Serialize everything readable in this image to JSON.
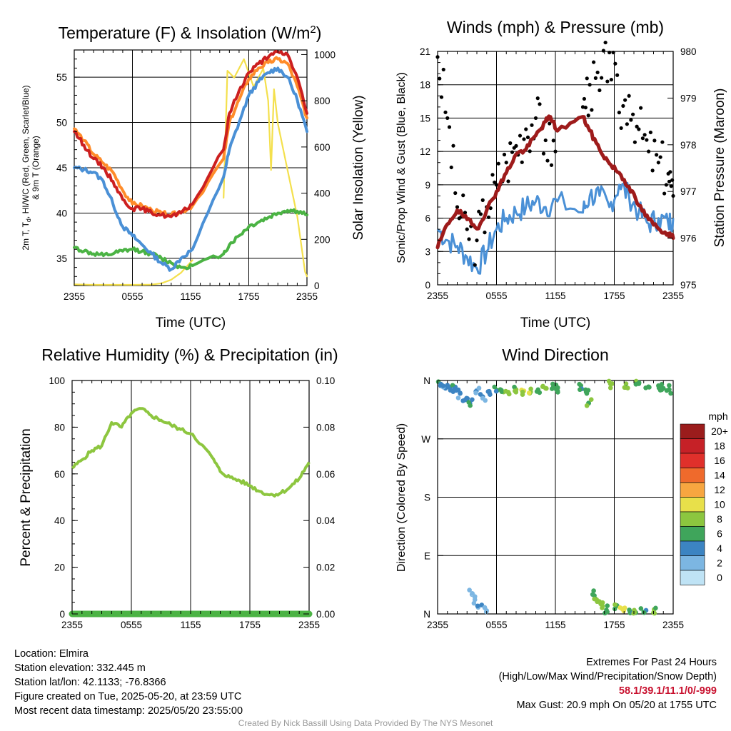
{
  "colors": {
    "temp": "#cc1f1f",
    "heat_index": "#ed7b2e",
    "dewpoint": "#4bb344",
    "temp9m": "#ff8c2a",
    "wind": "#4a90d6",
    "gust": "#000000",
    "pressure": "#9e1b1b",
    "insolation": "#f4e04d",
    "rh": "#8dc63f",
    "precip": "#4bb344",
    "extremes": "#c8102e",
    "credit": "#999999"
  },
  "panels": {
    "temp": {
      "title_main": "Temperature (F) & Insolation (W/m",
      "title_sup": "2",
      "title_end": ")",
      "ylabel_line1": "2m T, T",
      "ylabel_sub": "d",
      "ylabel_line1_end": ", HI/WC (Red, Green, Scarlet/Blue)",
      "ylabel_line2": "& 9m T (Orange)",
      "y2label": "Solar Insolation (Yellow)",
      "xlabel": "Time (UTC)"
    },
    "wind": {
      "title": "Winds (mph) & Pressure (mb)",
      "ylabel": "Sonic/Prop Wind & Gust (Blue, Black)",
      "y2label": "Station Pressure (Maroon)",
      "xlabel": "Time (UTC)"
    },
    "rh": {
      "title": "Relative Humidity (%) & Precipitation (in)",
      "ylabel": "Percent & Precipitation"
    },
    "dir": {
      "title": "Wind Direction",
      "ylabel": "Direction (Colored By Speed)",
      "colorbar_title": "mph",
      "colorbar_labels": [
        "20+",
        "18",
        "16",
        "14",
        "12",
        "10",
        "8",
        "6",
        "4",
        "2",
        "0"
      ],
      "colorbar_colors": [
        "#9b1c1c",
        "#c62127",
        "#e0302b",
        "#ef6a2c",
        "#f7a640",
        "#e8e04a",
        "#8cc63f",
        "#3fa55b",
        "#3c84c2",
        "#7cb6e2",
        "#bfe3f5"
      ]
    }
  },
  "x_ticks": [
    "2355",
    "0555",
    "1155",
    "1755",
    "2355"
  ],
  "meta": {
    "location": "Location: Elmira",
    "elevation": "Station elevation: 332.445 m",
    "latlon": "Station lat/lon: 42.1133; -76.8366",
    "created": "Figure created on Tue, 2025-05-20, at 23:59 UTC",
    "recent": "Most recent data timestamp: 2025/05/20 23:55:00",
    "extremes_title": "Extremes For Past 24 Hours",
    "extremes_desc": "(High/Low/Max Wind/Precipitation/Snow Depth)",
    "extremes_values": "58.1/39.1/11.1/0/-999",
    "max_gust": "Max Gust: 20.9 mph On 05/20 at 1755 UTC",
    "credit": "Created By Nick Bassill Using Data Provided By The NYS Mesonet"
  },
  "chart_data": [
    {
      "type": "line",
      "title": "Temperature (F) & Insolation (W/m2)",
      "xlabel": "Time (UTC)",
      "ylabel": "2m T, Td, HI/WC (Red, Green, Scarlet/Blue) & 9m T (Orange)",
      "y2label": "Solar Insolation (Yellow)",
      "x_ticks": [
        "2355",
        "0555",
        "1155",
        "1755",
        "2355"
      ],
      "xlim": [
        0,
        24
      ],
      "ylim": [
        32,
        58
      ],
      "y_ticks": [
        35,
        40,
        45,
        50,
        55
      ],
      "y2lim": [
        0,
        1020
      ],
      "y2_ticks": [
        0,
        200,
        400,
        600,
        800,
        1000
      ],
      "gaps": [
        [
          12.2,
          15.4
        ]
      ],
      "series": [
        {
          "name": "Red",
          "axis": "left",
          "color": "#cc1f1f",
          "x": [
            0,
            1,
            2,
            3,
            4,
            5,
            6,
            7,
            8,
            9,
            10,
            11,
            12.2,
            15.4,
            16,
            17,
            18,
            19,
            20,
            21,
            22,
            23,
            24
          ],
          "y": [
            49,
            47.5,
            46,
            45,
            43.5,
            41.5,
            40.5,
            40.5,
            40,
            39.8,
            39.6,
            40,
            41,
            47,
            51,
            53.5,
            55.5,
            56.5,
            57.2,
            57.8,
            57.5,
            55,
            51
          ]
        },
        {
          "name": "Orange",
          "axis": "left",
          "color": "#ff8c2a",
          "x": [
            0,
            1,
            2,
            3,
            4,
            5,
            6,
            7,
            8,
            9,
            10,
            11,
            12.2,
            15.4,
            16,
            17,
            18,
            19,
            20,
            21,
            22,
            23,
            24
          ],
          "y": [
            49.3,
            48,
            46.5,
            45.5,
            44.5,
            42.5,
            41,
            40.8,
            40.3,
            40,
            39.8,
            40.1,
            40.8,
            46,
            50,
            52.5,
            54.8,
            56,
            56.6,
            57,
            56.5,
            54,
            50.5
          ]
        },
        {
          "name": "Blue",
          "axis": "left",
          "color": "#4a90d6",
          "x": [
            0,
            1,
            2,
            3,
            4,
            5,
            6,
            7,
            8,
            9,
            10,
            11,
            12.2,
            15.4,
            16,
            17,
            18,
            19,
            20,
            21,
            22,
            23,
            24
          ],
          "y": [
            45,
            44.8,
            44.5,
            43.5,
            41,
            38.5,
            37.5,
            36.5,
            35.5,
            34.5,
            33.8,
            35,
            36,
            44,
            47,
            50,
            53,
            54.5,
            55.5,
            56,
            55,
            52.5,
            49
          ]
        },
        {
          "name": "Green",
          "axis": "left",
          "color": "#4bb344",
          "x": [
            0,
            1,
            2,
            3,
            4,
            5,
            6,
            7,
            8,
            9,
            10,
            11,
            12.2,
            15.4,
            16,
            17,
            18,
            19,
            20,
            21,
            22,
            23,
            24
          ],
          "y": [
            36.2,
            35.8,
            35.5,
            35.3,
            35.5,
            35.8,
            36,
            35.8,
            35.5,
            35,
            34.5,
            34,
            34.2,
            35.5,
            36.5,
            37.5,
            38.5,
            39,
            39.5,
            40,
            40.3,
            40.2,
            39.8
          ]
        },
        {
          "name": "Yellow",
          "axis": "right",
          "color": "#f4e04d",
          "x": [
            0,
            2,
            4,
            6,
            8,
            9,
            10,
            11,
            12.2,
            15.4,
            15.8,
            16.5,
            17.5,
            18.5,
            19,
            19.5,
            20,
            20.3,
            20.6,
            21,
            22,
            23,
            23.8,
            24
          ],
          "y": [
            5,
            3,
            3,
            3,
            4,
            10,
            25,
            55,
            110,
            380,
            930,
            900,
            980,
            860,
            900,
            940,
            800,
            500,
            850,
            700,
            500,
            300,
            60,
            40
          ]
        }
      ]
    },
    {
      "type": "line",
      "title": "Winds (mph) & Pressure (mb)",
      "xlabel": "Time (UTC)",
      "ylabel": "Sonic/Prop Wind & Gust (Blue, Black)",
      "y2label": "Station Pressure (Maroon)",
      "x_ticks": [
        "2355",
        "0555",
        "1155",
        "1755",
        "2355"
      ],
      "xlim": [
        0,
        24
      ],
      "ylim": [
        0,
        21
      ],
      "y_ticks": [
        0,
        3,
        6,
        9,
        12,
        15,
        18,
        21
      ],
      "y2lim": [
        975,
        980
      ],
      "y2_ticks": [
        975,
        976,
        977,
        978,
        979,
        980
      ],
      "gaps": [
        [
          12.2,
          14.8
        ]
      ],
      "series": [
        {
          "name": "Blue",
          "kind": "line",
          "axis": "left",
          "color": "#4a90d6",
          "x": [
            0,
            1,
            2,
            3,
            4,
            5,
            6,
            7,
            8,
            9,
            10,
            11,
            12.2,
            14.8,
            15.5,
            16.5,
            17.5,
            18.5,
            19.5,
            20.5,
            21.5,
            22.5,
            23.5,
            24
          ],
          "y": [
            5,
            4,
            3.5,
            2.5,
            1.5,
            3,
            5,
            6,
            6.5,
            7,
            7.5,
            7,
            7.5,
            6.5,
            8,
            8,
            7,
            9,
            8,
            6.5,
            5.5,
            6,
            5.5,
            6
          ]
        },
        {
          "name": "Black",
          "kind": "scatter",
          "axis": "left",
          "color": "#000000",
          "x": [
            0,
            1,
            2,
            3,
            4,
            5,
            6,
            7,
            8,
            9,
            10,
            11,
            12,
            14.8,
            15.5,
            16.5,
            17.5,
            18.5,
            19.5,
            20.5,
            21.5,
            22.5,
            23.5,
            24
          ],
          "y": [
            20.5,
            15,
            7,
            5,
            4,
            7,
            9,
            11,
            12.5,
            14,
            15,
            13,
            12,
            16,
            18,
            17.5,
            20.9,
            15.5,
            17,
            14,
            12,
            11,
            10,
            8
          ]
        },
        {
          "name": "Maroon",
          "kind": "line",
          "axis": "right",
          "color": "#9e1b1b",
          "x": [
            0,
            1,
            2,
            3,
            4,
            5,
            6,
            7,
            8,
            9,
            10,
            11,
            11.5,
            12.2,
            14.8,
            15.5,
            16.5,
            17.5,
            18.5,
            19.5,
            20.5,
            21.5,
            22.5,
            23.5,
            24
          ],
          "y": [
            975.8,
            976.3,
            976.6,
            976.4,
            976.2,
            976.6,
            977,
            977.4,
            977.8,
            977.9,
            978.2,
            978.5,
            978.6,
            978.3,
            978.6,
            978.3,
            977.9,
            977.6,
            977.4,
            977.1,
            976.7,
            976.4,
            976.2,
            976.1,
            976
          ]
        }
      ]
    },
    {
      "type": "line",
      "title": "Relative Humidity (%) & Precipitation (in)",
      "ylabel": "Percent & Precipitation",
      "x_ticks": [
        "2355",
        "0555",
        "1155",
        "1755",
        "2355"
      ],
      "xlim": [
        0,
        24
      ],
      "ylim": [
        0,
        100
      ],
      "y_ticks": [
        0,
        20,
        40,
        60,
        80,
        100
      ],
      "y2lim": [
        0,
        0.1
      ],
      "y2_ticks": [
        "0.00",
        "0.02",
        "0.04",
        "0.06",
        "0.08",
        "0.10"
      ],
      "gaps": [
        [
          12.2,
          14.2
        ]
      ],
      "series": [
        {
          "name": "Humidity",
          "axis": "left",
          "color": "#8dc63f",
          "x": [
            0,
            1,
            2,
            3,
            4,
            5,
            6,
            7,
            8,
            9,
            10,
            11,
            12.2,
            14.2,
            15,
            16,
            17,
            18,
            19,
            20,
            21,
            22,
            23,
            24
          ],
          "y": [
            62.5,
            66,
            70,
            72,
            82,
            80,
            86,
            88,
            85,
            83,
            81,
            79,
            77,
            67,
            61,
            58.5,
            57,
            55,
            52.5,
            51,
            51.5,
            54,
            58,
            65
          ]
        },
        {
          "name": "Precipitation",
          "axis": "right",
          "color": "#4bb344",
          "x": [
            0,
            6,
            12.2,
            14,
            19,
            24
          ],
          "y": [
            0,
            0,
            0,
            0,
            0,
            0
          ]
        }
      ]
    },
    {
      "type": "scatter",
      "title": "Wind Direction",
      "ylabel": "Direction (Colored By Speed)",
      "x_ticks": [
        "2355",
        "0555",
        "1155",
        "1755",
        "2355"
      ],
      "xlim": [
        0,
        24
      ],
      "y_ticks": [
        "N",
        "E",
        "S",
        "W",
        "N"
      ],
      "ylim": [
        0,
        360
      ],
      "colorbar": {
        "title": "mph",
        "labels": [
          "20+",
          "18",
          "16",
          "14",
          "12",
          "10",
          "8",
          "6",
          "4",
          "2",
          "0"
        ]
      },
      "points": [
        {
          "x": 0.3,
          "y": 352,
          "mph": 4
        },
        {
          "x": 0.8,
          "y": 348,
          "mph": 3
        },
        {
          "x": 1.3,
          "y": 345,
          "mph": 3
        },
        {
          "x": 1.8,
          "y": 350,
          "mph": 4
        },
        {
          "x": 2.3,
          "y": 340,
          "mph": 3
        },
        {
          "x": 2.8,
          "y": 330,
          "mph": 4
        },
        {
          "x": 3.3,
          "y": 325,
          "mph": 4
        },
        {
          "x": 3.5,
          "y": 30,
          "mph": 1
        },
        {
          "x": 3.8,
          "y": 22,
          "mph": 2
        },
        {
          "x": 4.0,
          "y": 345,
          "mph": 2
        },
        {
          "x": 4.2,
          "y": 12,
          "mph": 2
        },
        {
          "x": 4.6,
          "y": 335,
          "mph": 3
        },
        {
          "x": 5.0,
          "y": 5,
          "mph": 2
        },
        {
          "x": 5.3,
          "y": 340,
          "mph": 4
        },
        {
          "x": 5.8,
          "y": 350,
          "mph": 5
        },
        {
          "x": 6.5,
          "y": 345,
          "mph": 6
        },
        {
          "x": 7.2,
          "y": 342,
          "mph": 7
        },
        {
          "x": 8.0,
          "y": 346,
          "mph": 7
        },
        {
          "x": 8.8,
          "y": 344,
          "mph": 9
        },
        {
          "x": 9.5,
          "y": 347,
          "mph": 8
        },
        {
          "x": 10.2,
          "y": 343,
          "mph": 6
        },
        {
          "x": 11.0,
          "y": 348,
          "mph": 7
        },
        {
          "x": 11.8,
          "y": 350,
          "mph": 6
        },
        {
          "x": 12.1,
          "y": 346,
          "mph": 5
        },
        {
          "x": 14.6,
          "y": 352,
          "mph": 5
        },
        {
          "x": 15.2,
          "y": 340,
          "mph": 6
        },
        {
          "x": 15.4,
          "y": 325,
          "mph": 6
        },
        {
          "x": 15.8,
          "y": 30,
          "mph": 6
        },
        {
          "x": 16.2,
          "y": 22,
          "mph": 7
        },
        {
          "x": 16.8,
          "y": 12,
          "mph": 8
        },
        {
          "x": 17.2,
          "y": 6,
          "mph": 6
        },
        {
          "x": 17.6,
          "y": 355,
          "mph": 7
        },
        {
          "x": 18.2,
          "y": 12,
          "mph": 6
        },
        {
          "x": 18.8,
          "y": 8,
          "mph": 9
        },
        {
          "x": 19.2,
          "y": 355,
          "mph": 7
        },
        {
          "x": 19.6,
          "y": 4,
          "mph": 5
        },
        {
          "x": 20.2,
          "y": 2,
          "mph": 6
        },
        {
          "x": 20.5,
          "y": 355,
          "mph": 6
        },
        {
          "x": 21.0,
          "y": 3,
          "mph": 5
        },
        {
          "x": 21.5,
          "y": 350,
          "mph": 6
        },
        {
          "x": 22.0,
          "y": 2,
          "mph": 7
        },
        {
          "x": 22.5,
          "y": 352,
          "mph": 6
        },
        {
          "x": 23.0,
          "y": 348,
          "mph": 6
        },
        {
          "x": 23.6,
          "y": 346,
          "mph": 6
        }
      ]
    }
  ]
}
